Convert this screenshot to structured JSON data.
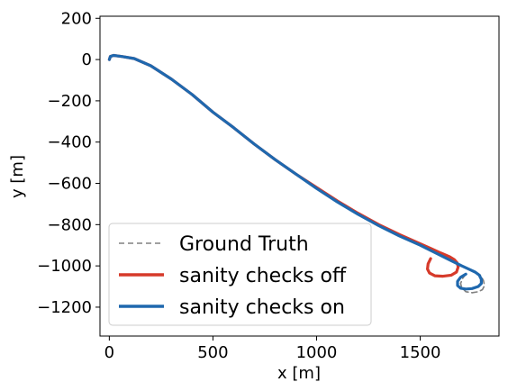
{
  "chart_data": {
    "type": "line",
    "title": "",
    "xlabel": "x [m]",
    "ylabel": "y [m]",
    "xlim": [
      -45,
      1880
    ],
    "ylim": [
      -1340,
      210
    ],
    "grid": false,
    "legend_position": "lower-left",
    "x_ticks": [
      {
        "value": 0,
        "label": "0"
      },
      {
        "value": 500,
        "label": "500"
      },
      {
        "value": 1000,
        "label": "1000"
      },
      {
        "value": 1500,
        "label": "1500"
      }
    ],
    "y_ticks": [
      {
        "value": 200,
        "label": "200"
      },
      {
        "value": 0,
        "label": "0"
      },
      {
        "value": -200,
        "label": "−200"
      },
      {
        "value": -400,
        "label": "−400"
      },
      {
        "value": -600,
        "label": "−600"
      },
      {
        "value": -800,
        "label": "−800"
      },
      {
        "value": -1000,
        "label": "−1000"
      },
      {
        "value": -1200,
        "label": "−1200"
      }
    ],
    "series": [
      {
        "name": "Ground Truth",
        "color": "#808080",
        "style": "dashed",
        "points": [
          [
            0,
            0
          ],
          [
            5,
            15
          ],
          [
            20,
            20
          ],
          [
            60,
            15
          ],
          [
            120,
            5
          ],
          [
            200,
            -30
          ],
          [
            300,
            -95
          ],
          [
            400,
            -170
          ],
          [
            500,
            -255
          ],
          [
            600,
            -330
          ],
          [
            700,
            -410
          ],
          [
            800,
            -485
          ],
          [
            900,
            -555
          ],
          [
            1000,
            -625
          ],
          [
            1100,
            -690
          ],
          [
            1200,
            -750
          ],
          [
            1300,
            -805
          ],
          [
            1400,
            -855
          ],
          [
            1500,
            -900
          ],
          [
            1550,
            -925
          ],
          [
            1600,
            -950
          ],
          [
            1650,
            -975
          ],
          [
            1700,
            -1000
          ],
          [
            1740,
            -1020
          ],
          [
            1770,
            -1030
          ],
          [
            1790,
            -1045
          ],
          [
            1805,
            -1070
          ],
          [
            1810,
            -1095
          ],
          [
            1800,
            -1115
          ],
          [
            1780,
            -1125
          ],
          [
            1750,
            -1130
          ],
          [
            1720,
            -1125
          ],
          [
            1700,
            -1105
          ],
          [
            1695,
            -1085
          ],
          [
            1705,
            -1060
          ],
          [
            1720,
            -1040
          ]
        ]
      },
      {
        "name": "sanity checks off",
        "color": "#d63a2a",
        "style": "solid",
        "points": [
          [
            0,
            0
          ],
          [
            5,
            15
          ],
          [
            20,
            20
          ],
          [
            60,
            15
          ],
          [
            120,
            5
          ],
          [
            200,
            -30
          ],
          [
            300,
            -95
          ],
          [
            400,
            -170
          ],
          [
            500,
            -255
          ],
          [
            600,
            -330
          ],
          [
            700,
            -410
          ],
          [
            800,
            -485
          ],
          [
            900,
            -555
          ],
          [
            1000,
            -620
          ],
          [
            1100,
            -685
          ],
          [
            1200,
            -745
          ],
          [
            1300,
            -800
          ],
          [
            1400,
            -848
          ],
          [
            1500,
            -893
          ],
          [
            1550,
            -915
          ],
          [
            1600,
            -938
          ],
          [
            1640,
            -955
          ],
          [
            1665,
            -970
          ],
          [
            1678,
            -985
          ],
          [
            1683,
            -1005
          ],
          [
            1675,
            -1030
          ],
          [
            1650,
            -1045
          ],
          [
            1610,
            -1050
          ],
          [
            1570,
            -1048
          ],
          [
            1545,
            -1035
          ],
          [
            1535,
            -1015
          ],
          [
            1538,
            -990
          ],
          [
            1550,
            -965
          ]
        ]
      },
      {
        "name": "sanity checks on",
        "color": "#1f68ae",
        "style": "solid",
        "points": [
          [
            0,
            0
          ],
          [
            5,
            15
          ],
          [
            20,
            20
          ],
          [
            60,
            15
          ],
          [
            120,
            5
          ],
          [
            200,
            -30
          ],
          [
            300,
            -95
          ],
          [
            400,
            -170
          ],
          [
            500,
            -255
          ],
          [
            600,
            -330
          ],
          [
            700,
            -410
          ],
          [
            800,
            -485
          ],
          [
            900,
            -555
          ],
          [
            1000,
            -625
          ],
          [
            1100,
            -690
          ],
          [
            1200,
            -750
          ],
          [
            1300,
            -805
          ],
          [
            1400,
            -855
          ],
          [
            1500,
            -900
          ],
          [
            1550,
            -925
          ],
          [
            1600,
            -950
          ],
          [
            1650,
            -975
          ],
          [
            1700,
            -1000
          ],
          [
            1740,
            -1018
          ],
          [
            1765,
            -1030
          ],
          [
            1785,
            -1045
          ],
          [
            1795,
            -1065
          ],
          [
            1795,
            -1085
          ],
          [
            1780,
            -1100
          ],
          [
            1750,
            -1110
          ],
          [
            1720,
            -1112
          ],
          [
            1695,
            -1108
          ],
          [
            1680,
            -1095
          ],
          [
            1680,
            -1075
          ],
          [
            1695,
            -1055
          ],
          [
            1720,
            -1040
          ]
        ]
      }
    ]
  }
}
